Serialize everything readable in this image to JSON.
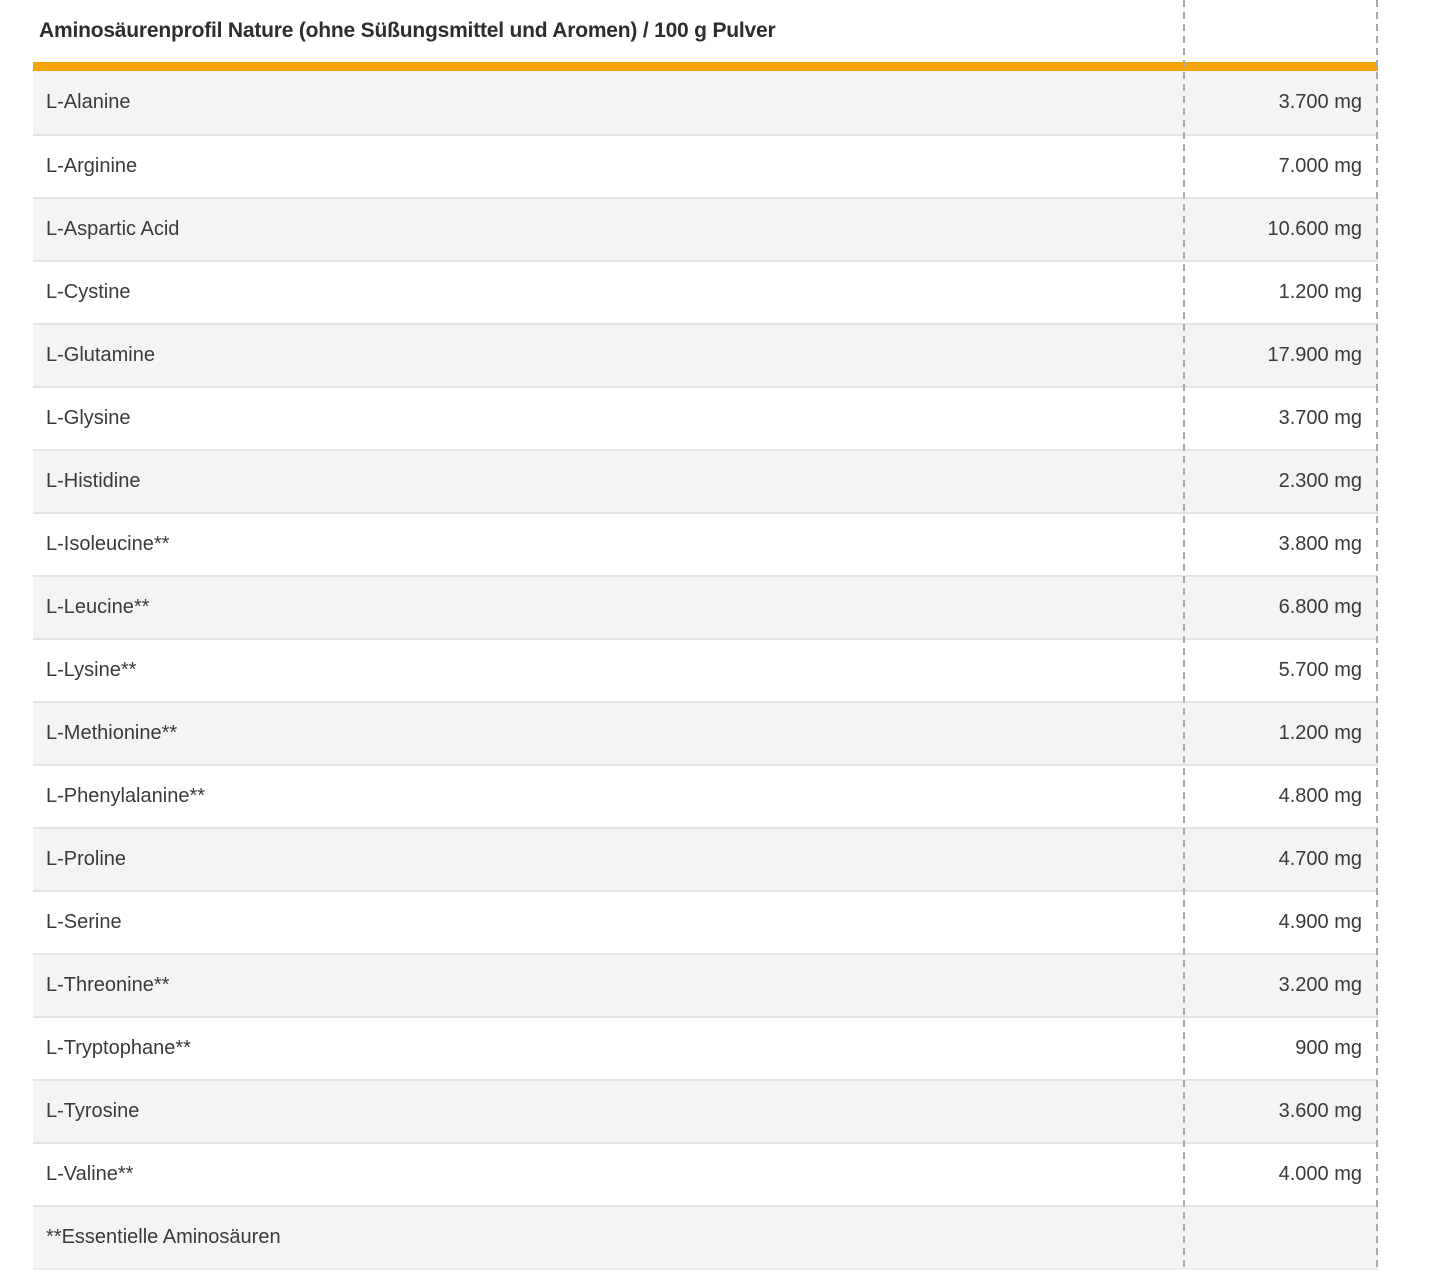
{
  "table": {
    "title": "Aminosäurenprofil Nature (ohne Süßungsmittel und Aromen) / 100 g Pulver",
    "rows": [
      {
        "label": "L-Alanine",
        "value": "3.700 mg"
      },
      {
        "label": "L-Arginine",
        "value": "7.000 mg"
      },
      {
        "label": "L-Aspartic Acid",
        "value": "10.600 mg"
      },
      {
        "label": "L-Cystine",
        "value": "1.200 mg"
      },
      {
        "label": "L-Glutamine",
        "value": "17.900 mg"
      },
      {
        "label": "L-Glysine",
        "value": "3.700 mg"
      },
      {
        "label": "L-Histidine",
        "value": "2.300 mg"
      },
      {
        "label": "L-Isoleucine**",
        "value": "3.800 mg"
      },
      {
        "label": "L-Leucine**",
        "value": "6.800 mg"
      },
      {
        "label": "L-Lysine**",
        "value": "5.700 mg"
      },
      {
        "label": "L-Methionine**",
        "value": "1.200 mg"
      },
      {
        "label": "L-Phenylalanine**",
        "value": "4.800 mg"
      },
      {
        "label": "L-Proline",
        "value": "4.700 mg"
      },
      {
        "label": "L-Serine",
        "value": "4.900 mg"
      },
      {
        "label": "L-Threonine**",
        "value": "3.200 mg"
      },
      {
        "label": "L-Tryptophane**",
        "value": "900 mg"
      },
      {
        "label": "L-Tyrosine",
        "value": "3.600 mg"
      },
      {
        "label": "L-Valine**",
        "value": "4.000 mg"
      },
      {
        "label": "**Essentielle Aminosäuren",
        "value": ""
      }
    ]
  },
  "colors": {
    "accent_orange": "#F5A30A",
    "row_shade": "#F4F4F4",
    "row_border": "#E4E4E4",
    "dashed_divider": "#AAAAAA",
    "text": "#3A3A3A"
  }
}
